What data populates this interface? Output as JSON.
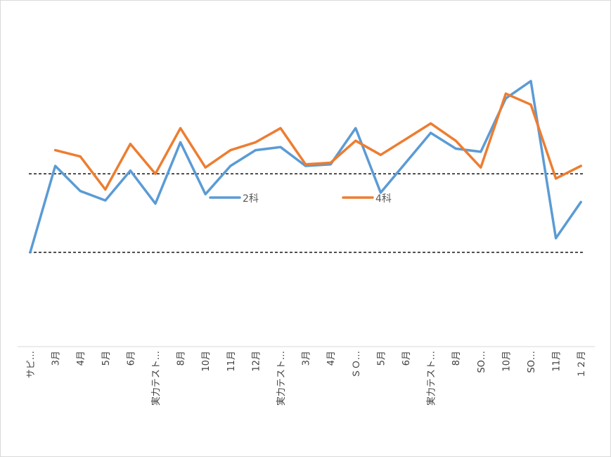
{
  "chart_data": {
    "type": "line",
    "title": "",
    "xlabel": "",
    "ylabel": "",
    "y_axis_visible": false,
    "grid": false,
    "legend_position": "center",
    "categories": [
      "サピ…",
      "3月",
      "4月",
      "5月",
      "6月",
      "実力テスト…",
      "8月",
      "10月",
      "11月",
      "12月",
      "実力テスト…",
      "3月",
      "4月",
      "ＳＯ…",
      "5月",
      "6月",
      "実力テスト…",
      "8月",
      "SO…",
      "10月",
      "SO…",
      "11月",
      "１２月"
    ],
    "ylim": [
      0,
      100
    ],
    "reference_lines": [
      55,
      30
    ],
    "series": [
      {
        "name": "2科",
        "color": "#5B9BD5",
        "values": [
          30,
          57.5,
          49.5,
          46.5,
          56,
          45.5,
          65,
          48.5,
          57.5,
          62.5,
          63.5,
          57.5,
          58,
          69.5,
          49,
          58.5,
          68,
          63,
          62,
          79,
          84.5,
          34.5,
          46
        ]
      },
      {
        "name": "4科",
        "color": "#ED7D31",
        "values": [
          null,
          62.5,
          60.5,
          50,
          64.5,
          55,
          69.5,
          57,
          62.5,
          65,
          69.5,
          58,
          58.5,
          65.5,
          61,
          66,
          71,
          65.5,
          57,
          80.5,
          77,
          53.5,
          57.5
        ]
      }
    ]
  },
  "legend": {
    "item_2": "2科",
    "item_4": "4科"
  }
}
